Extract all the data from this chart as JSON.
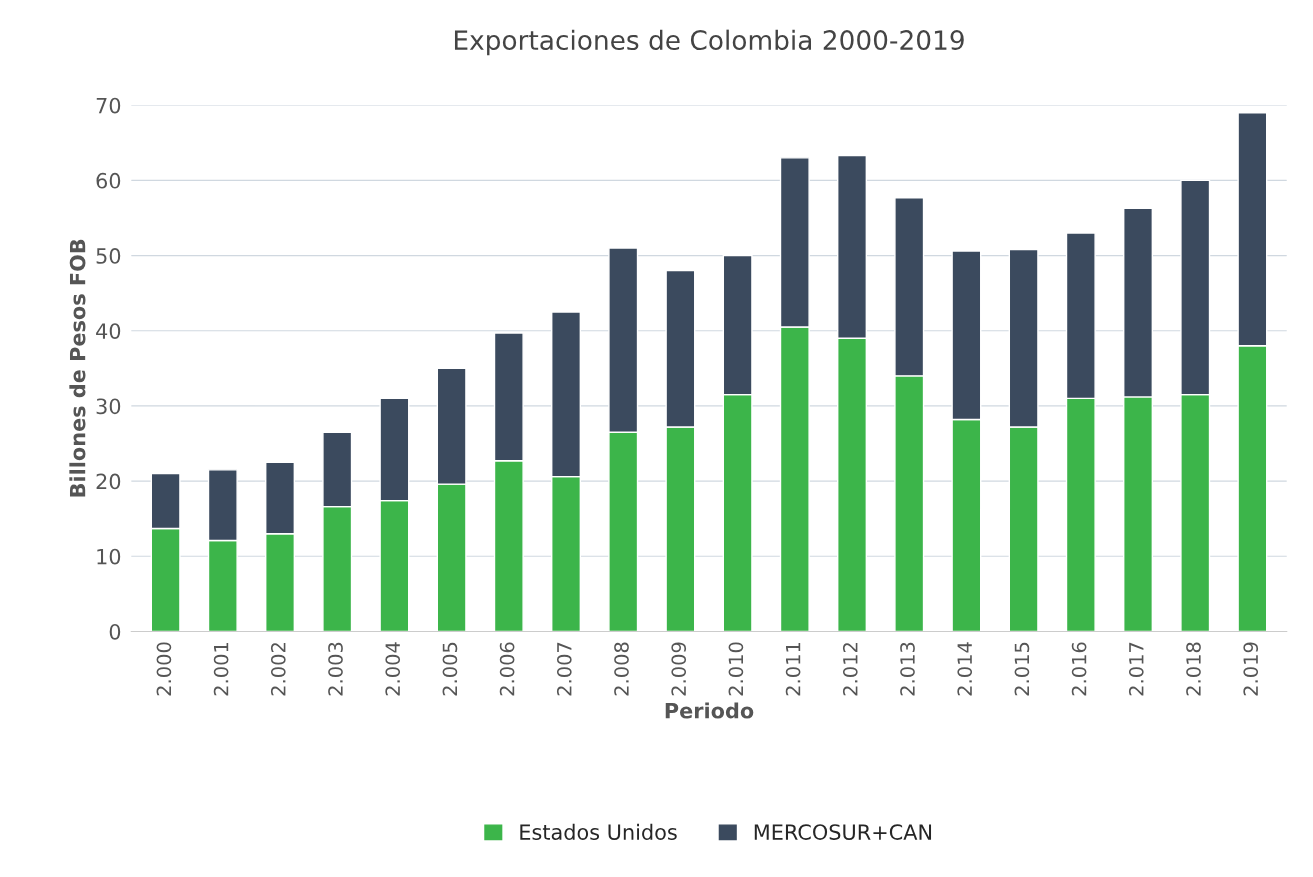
{
  "chart_data": {
    "type": "bar",
    "title": "Exportaciones de Colombia 2000-2019",
    "xlabel": "Periodo",
    "ylabel": "Billones de Pesos FOB",
    "categories": [
      "2.000",
      "2.001",
      "2.002",
      "2.003",
      "2.004",
      "2.005",
      "2.006",
      "2.007",
      "2.008",
      "2.009",
      "2.010",
      "2.011",
      "2.012",
      "2.013",
      "2.014",
      "2.015",
      "2.016",
      "2.017",
      "2.018",
      "2.019"
    ],
    "stacked": true,
    "series": [
      {
        "name": "Estados Unidos",
        "color": "#3cb54a",
        "values": [
          13.7,
          12.1,
          13,
          16.6,
          17.4,
          19.6,
          22.7,
          20.6,
          26.5,
          27.2,
          31.5,
          40.5,
          39,
          34,
          28.2,
          27.2,
          31,
          31.2,
          31.5,
          38
        ]
      },
      {
        "name": "MERCOSUR+CAN",
        "color": "#3b4a5e",
        "values": [
          7.3,
          9.4,
          9.5,
          9.9,
          13.6,
          15.4,
          17,
          21.9,
          24.5,
          20.8,
          18.5,
          22.5,
          24.3,
          23.7,
          22.4,
          23.6,
          22,
          25.1,
          28.5,
          31
        ]
      }
    ],
    "ylim": [
      0,
      70
    ],
    "yticks": [
      0,
      10,
      20,
      30,
      40,
      50,
      60,
      70
    ],
    "grid": "y",
    "legend": "bottom"
  }
}
